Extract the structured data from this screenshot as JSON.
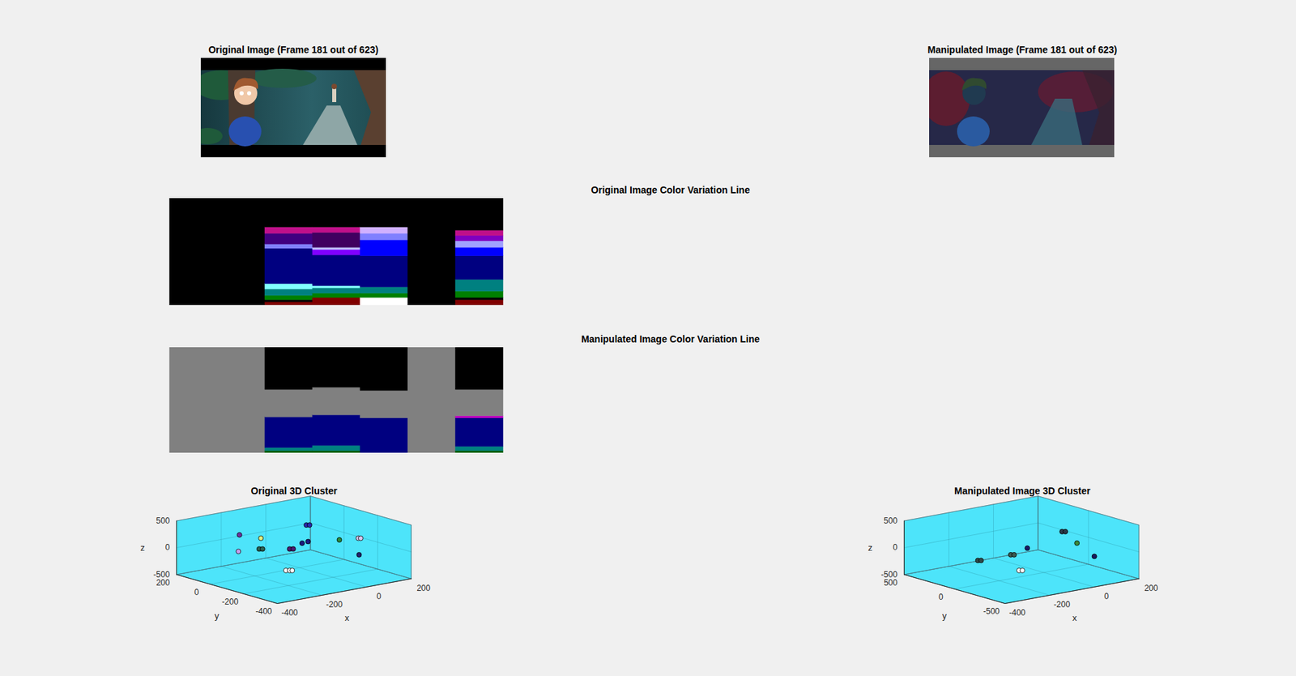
{
  "chart_data": [
    {
      "type": "image",
      "title": "Original Image (Frame 181 out of 623)"
    },
    {
      "type": "image",
      "title": "Manipulated Image (Frame 181 out of 623)"
    },
    {
      "type": "color_strip",
      "title": "Original Image Color Variation Line",
      "stacked": true,
      "tick_labels": false,
      "ylim": [
        0,
        100
      ],
      "columns": [
        {
          "colors": [
            "#000000"
          ],
          "values": [
            100
          ]
        },
        {
          "colors": [
            "#000000"
          ],
          "values": [
            100
          ]
        },
        {
          "colors": [
            "#800000",
            "#000000",
            "#008000",
            "#008080",
            "#80ffff",
            "#000080",
            "#8080ff",
            "#400080",
            "#c0108a",
            "#000000"
          ],
          "values": [
            3,
            2,
            4,
            6,
            5,
            33,
            4,
            10,
            6,
            27
          ]
        },
        {
          "colors": [
            "#800000",
            "#008000",
            "#008080",
            "#80ffff",
            "#000080",
            "#8000ff",
            "#c0c0ff",
            "#400060",
            "#c0108a",
            "#000000"
          ],
          "values": [
            7,
            4,
            5,
            2,
            29,
            5,
            2,
            14,
            5,
            27
          ]
        },
        {
          "colors": [
            "#ffffff",
            "#008000",
            "#008080",
            "#000080",
            "#0000ff",
            "#8080ff",
            "#d0b0ff",
            "#000000"
          ],
          "values": [
            7,
            4,
            6,
            29,
            15,
            6,
            6,
            27
          ]
        },
        {
          "colors": [
            "#000000"
          ],
          "values": [
            100
          ]
        },
        {
          "colors": [
            "#800000",
            "#000000",
            "#008000",
            "#008080",
            "#000080",
            "#0000ff",
            "#a0a0ff",
            "#8000c0",
            "#c0108a",
            "#000000"
          ],
          "values": [
            5,
            2,
            6,
            11,
            22,
            8,
            6,
            5,
            5,
            30
          ]
        }
      ]
    },
    {
      "type": "color_strip",
      "title": "Manipulated Image Color Variation Line",
      "stacked": true,
      "tick_labels": false,
      "ylim": [
        0,
        100
      ],
      "columns": [
        {
          "colors": [
            "#808080"
          ],
          "values": [
            100
          ]
        },
        {
          "colors": [
            "#808080"
          ],
          "values": [
            100
          ]
        },
        {
          "colors": [
            "#006000",
            "#008080",
            "#000080",
            "#808080",
            "#000000"
          ],
          "values": [
            2,
            3,
            29,
            26,
            40
          ]
        },
        {
          "colors": [
            "#006000",
            "#008080",
            "#000080",
            "#808080",
            "#000000"
          ],
          "values": [
            2,
            5,
            29,
            26,
            38
          ]
        },
        {
          "colors": [
            "#000080",
            "#808080",
            "#000000"
          ],
          "values": [
            33,
            26,
            41
          ]
        },
        {
          "colors": [
            "#808080"
          ],
          "values": [
            100
          ]
        },
        {
          "colors": [
            "#006000",
            "#008080",
            "#000080",
            "#c000c0",
            "#808080",
            "#000000"
          ],
          "values": [
            2,
            4,
            27,
            2,
            25,
            40
          ]
        }
      ]
    },
    {
      "type": "scatter3d",
      "title": "Original 3D Cluster",
      "x_label": "x",
      "y_label": "y",
      "z_label": "z",
      "xlim": [
        -400,
        200
      ],
      "ylim": [
        -400,
        200
      ],
      "zlim": [
        -500,
        500
      ],
      "xticks": [
        -400,
        -200,
        0,
        200
      ],
      "yticks": [
        -400,
        -200,
        0,
        200
      ],
      "zticks": [
        -500,
        0,
        500
      ],
      "grid": true,
      "marker": "circle",
      "x": [
        -158,
        -165,
        -80,
        -136,
        -127,
        -53,
        -43,
        -15,
        17,
        16,
        25,
        118,
        160,
        166,
        107,
        -114,
        -104,
        -97
      ],
      "y": [
        147,
        144,
        123,
        59,
        51,
        -12,
        -20,
        -36,
        -29,
        -20,
        -27,
        -81,
        -138,
        -144,
        -213,
        -71,
        -80,
        -86
      ],
      "z": [
        100,
        -200,
        0,
        -100,
        -100,
        -100,
        -100,
        0,
        0,
        300,
        300,
        0,
        50,
        50,
        -150,
        -400,
        -400,
        -400
      ],
      "colors": [
        "#7030a0",
        "#c8a0f0",
        "#e0f080",
        "#2a6050",
        "#2a6050",
        "#4a1a70",
        "#4a1a70",
        "#1a1a80",
        "#1a1a80",
        "#2828b0",
        "#2828b0",
        "#2a8a3a",
        "#d8c8f0",
        "#d8c8f0",
        "#202070",
        "#ffffff",
        "#ffffff",
        "#ffffff"
      ]
    },
    {
      "type": "scatter3d",
      "title": "Manipulated Image 3D Cluster",
      "x_label": "x",
      "y_label": "y",
      "z_label": "z",
      "xlim": [
        -400,
        200
      ],
      "ylim": [
        -500,
        500
      ],
      "zlim": [
        -500,
        500
      ],
      "xticks": [
        -400,
        -200,
        0,
        200
      ],
      "yticks": [
        -500,
        0,
        500
      ],
      "zticks": [
        -500,
        0,
        500
      ],
      "grid": true,
      "marker": "circle",
      "x": [
        -219,
        -210,
        -100,
        -91,
        -43,
        30,
        39,
        63,
        112,
        -99,
        -90
      ],
      "y": [
        170,
        158,
        107,
        94,
        69,
        -114,
        -127,
        -189,
        -253,
        27,
        14
      ],
      "z": [
        -200,
        -200,
        -150,
        -150,
        -50,
        300,
        300,
        100,
        -150,
        -400,
        -400
      ],
      "colors": [
        "#304848",
        "#304848",
        "#3a5a50",
        "#3a5a50",
        "#18186a",
        "#283848",
        "#283848",
        "#3a8a3a",
        "#181860",
        "#ffffff",
        "#ffffff"
      ]
    }
  ]
}
